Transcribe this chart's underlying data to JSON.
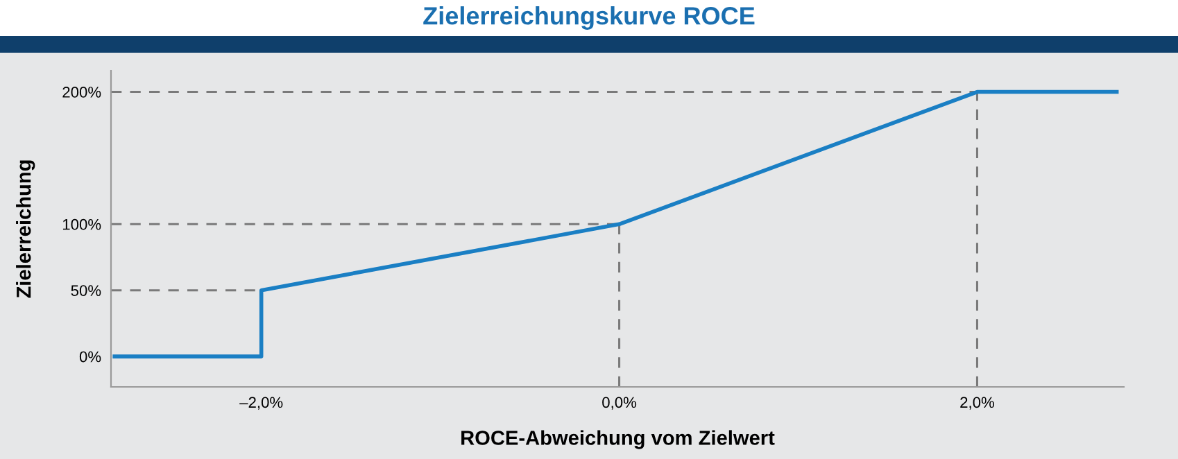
{
  "chart_data": {
    "type": "line",
    "title": "Zielerreichungskurve ROCE",
    "xlabel": "ROCE-Abweichung vom Zielwert",
    "ylabel": "Zielerreichung",
    "x": [
      -2.82,
      -2.0,
      -2.0,
      0.0,
      2.0,
      2.78
    ],
    "series": [
      {
        "color": "#1a7fc4",
        "values": [
          0,
          0,
          50,
          100,
          200,
          200
        ]
      }
    ],
    "xlim": [
      -2.84,
      2.82
    ],
    "ylim": [
      -23,
      216
    ],
    "xticks": [
      {
        "value": -2.0,
        "label": "–2,0%"
      },
      {
        "value": 0.0,
        "label": "0,0%"
      },
      {
        "value": 2.0,
        "label": "2,0%"
      }
    ],
    "yticks": [
      {
        "value": 0,
        "label": "0%"
      },
      {
        "value": 50,
        "label": "50%"
      },
      {
        "value": 100,
        "label": "100%"
      },
      {
        "value": 200,
        "label": "200%"
      }
    ],
    "ref_lines": [
      {
        "axis": "y",
        "value": 50,
        "color": "#7a7a7a",
        "line_style": "dashed"
      },
      {
        "axis": "y",
        "value": 100,
        "color": "#7a7a7a",
        "line_style": "dashed"
      },
      {
        "axis": "y",
        "value": 200,
        "color": "#7a7a7a",
        "line_style": "dashed"
      },
      {
        "axis": "x",
        "value": 0.0,
        "color": "#7a7a7a",
        "line_style": "dashed"
      },
      {
        "axis": "x",
        "value": 2.0,
        "color": "#7a7a7a",
        "line_style": "dashed"
      }
    ],
    "grid": false,
    "marker": "none",
    "line_style": "solid"
  }
}
